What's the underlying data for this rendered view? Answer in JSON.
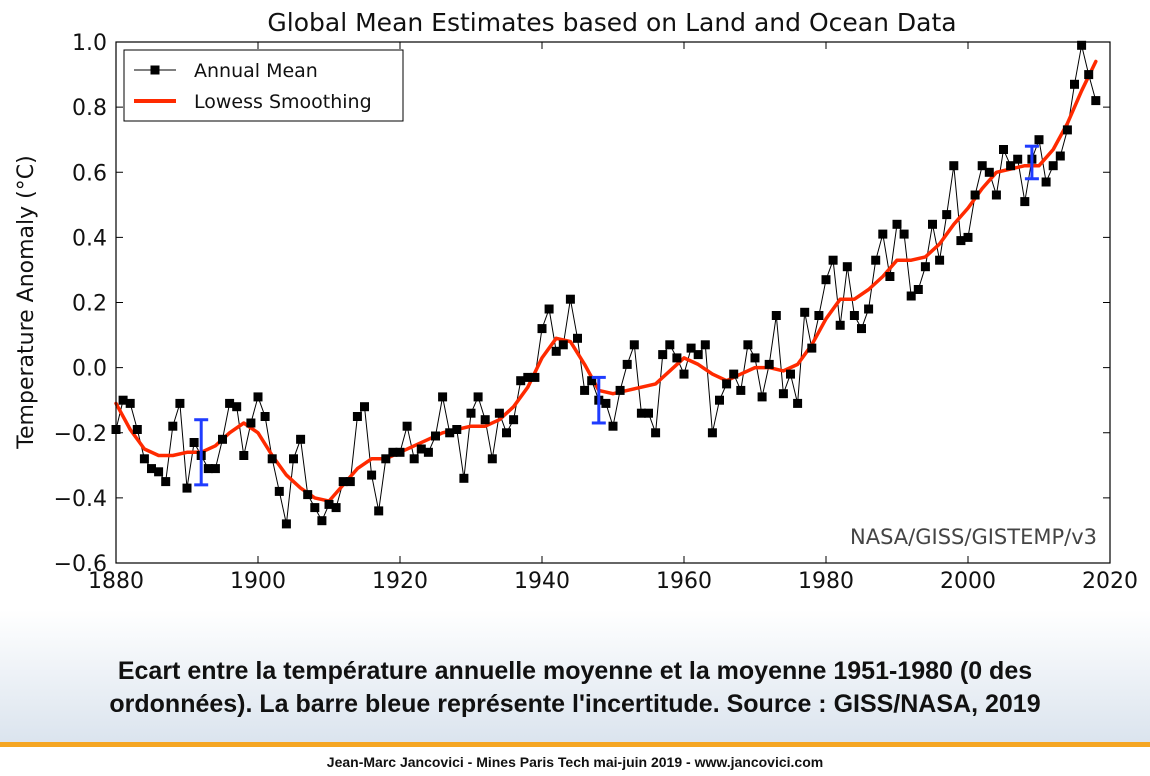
{
  "chart_data": {
    "type": "line",
    "title": "Global Mean Estimates based on Land and Ocean Data",
    "xlabel": "",
    "ylabel": "Temperature Anomaly (°C)",
    "xlim": [
      1880,
      2020
    ],
    "ylim": [
      -0.6,
      1.0
    ],
    "xticks": [
      1880,
      1900,
      1920,
      1940,
      1960,
      1980,
      2000,
      2020
    ],
    "yticks": [
      -0.6,
      -0.4,
      -0.2,
      0.0,
      0.2,
      0.4,
      0.6,
      0.8,
      1.0
    ],
    "ytick_labels": [
      "−0.6",
      "−0.4",
      "−0.2",
      "0.0",
      "0.2",
      "0.4",
      "0.6",
      "0.8",
      "1.0"
    ],
    "grid": false,
    "legend_position": "top-left",
    "annotation": "NASA/GISS/GISTEMP/v3",
    "colors": {
      "annual": "#000000",
      "smooth": "#ff2a00",
      "error": "#1f3cff"
    },
    "series": [
      {
        "name": "Annual Mean",
        "style": "black line with square markers",
        "x": [
          1880,
          1881,
          1882,
          1883,
          1884,
          1885,
          1886,
          1887,
          1888,
          1889,
          1890,
          1891,
          1892,
          1893,
          1894,
          1895,
          1896,
          1897,
          1898,
          1899,
          1900,
          1901,
          1902,
          1903,
          1904,
          1905,
          1906,
          1907,
          1908,
          1909,
          1910,
          1911,
          1912,
          1913,
          1914,
          1915,
          1916,
          1917,
          1918,
          1919,
          1920,
          1921,
          1922,
          1923,
          1924,
          1925,
          1926,
          1927,
          1928,
          1929,
          1930,
          1931,
          1932,
          1933,
          1934,
          1935,
          1936,
          1937,
          1938,
          1939,
          1940,
          1941,
          1942,
          1943,
          1944,
          1945,
          1946,
          1947,
          1948,
          1949,
          1950,
          1951,
          1952,
          1953,
          1954,
          1955,
          1956,
          1957,
          1958,
          1959,
          1960,
          1961,
          1962,
          1963,
          1964,
          1965,
          1966,
          1967,
          1968,
          1969,
          1970,
          1971,
          1972,
          1973,
          1974,
          1975,
          1976,
          1977,
          1978,
          1979,
          1980,
          1981,
          1982,
          1983,
          1984,
          1985,
          1986,
          1987,
          1988,
          1989,
          1990,
          1991,
          1992,
          1993,
          1994,
          1995,
          1996,
          1997,
          1998,
          1999,
          2000,
          2001,
          2002,
          2003,
          2004,
          2005,
          2006,
          2007,
          2008,
          2009,
          2010,
          2011,
          2012,
          2013,
          2014,
          2015,
          2016,
          2017,
          2018
        ],
        "y": [
          -0.19,
          -0.1,
          -0.11,
          -0.19,
          -0.28,
          -0.31,
          -0.32,
          -0.35,
          -0.18,
          -0.11,
          -0.37,
          -0.23,
          -0.27,
          -0.31,
          -0.31,
          -0.22,
          -0.11,
          -0.12,
          -0.27,
          -0.17,
          -0.09,
          -0.15,
          -0.28,
          -0.38,
          -0.48,
          -0.28,
          -0.22,
          -0.39,
          -0.43,
          -0.47,
          -0.42,
          -0.43,
          -0.35,
          -0.35,
          -0.15,
          -0.12,
          -0.33,
          -0.44,
          -0.28,
          -0.26,
          -0.26,
          -0.18,
          -0.28,
          -0.25,
          -0.26,
          -0.21,
          -0.09,
          -0.2,
          -0.19,
          -0.34,
          -0.14,
          -0.09,
          -0.16,
          -0.28,
          -0.14,
          -0.2,
          -0.16,
          -0.04,
          -0.03,
          -0.03,
          0.12,
          0.18,
          0.05,
          0.07,
          0.21,
          0.09,
          -0.07,
          -0.04,
          -0.1,
          -0.11,
          -0.18,
          -0.07,
          0.01,
          0.07,
          -0.14,
          -0.14,
          -0.2,
          0.04,
          0.07,
          0.03,
          -0.02,
          0.06,
          0.04,
          0.07,
          -0.2,
          -0.1,
          -0.05,
          -0.02,
          -0.07,
          0.07,
          0.03,
          -0.09,
          0.01,
          0.16,
          -0.08,
          -0.02,
          -0.11,
          0.17,
          0.06,
          0.16,
          0.27,
          0.33,
          0.13,
          0.31,
          0.16,
          0.12,
          0.18,
          0.33,
          0.41,
          0.28,
          0.44,
          0.41,
          0.22,
          0.24,
          0.31,
          0.44,
          0.33,
          0.47,
          0.62,
          0.39,
          0.4,
          0.53,
          0.62,
          0.6,
          0.53,
          0.67,
          0.62,
          0.64,
          0.51,
          0.64,
          0.7,
          0.57,
          0.62,
          0.65,
          0.73,
          0.87,
          0.99,
          0.9,
          0.82
        ]
      },
      {
        "name": "Lowess Smoothing",
        "style": "thick red line",
        "x": [
          1880,
          1882,
          1884,
          1886,
          1888,
          1890,
          1892,
          1894,
          1896,
          1898,
          1900,
          1902,
          1904,
          1906,
          1908,
          1910,
          1912,
          1914,
          1916,
          1918,
          1920,
          1922,
          1924,
          1926,
          1928,
          1930,
          1932,
          1934,
          1936,
          1938,
          1940,
          1942,
          1944,
          1946,
          1948,
          1950,
          1952,
          1954,
          1956,
          1958,
          1960,
          1962,
          1964,
          1966,
          1968,
          1970,
          1972,
          1974,
          1976,
          1978,
          1980,
          1982,
          1984,
          1986,
          1988,
          1990,
          1992,
          1994,
          1996,
          1998,
          2000,
          2002,
          2004,
          2006,
          2008,
          2010,
          2012,
          2014,
          2016,
          2018
        ],
        "y": [
          -0.11,
          -0.19,
          -0.25,
          -0.27,
          -0.27,
          -0.26,
          -0.26,
          -0.24,
          -0.2,
          -0.17,
          -0.2,
          -0.27,
          -0.33,
          -0.37,
          -0.4,
          -0.41,
          -0.36,
          -0.31,
          -0.28,
          -0.28,
          -0.26,
          -0.24,
          -0.22,
          -0.2,
          -0.19,
          -0.18,
          -0.18,
          -0.16,
          -0.12,
          -0.06,
          0.03,
          0.09,
          0.08,
          0.01,
          -0.07,
          -0.08,
          -0.07,
          -0.06,
          -0.05,
          -0.01,
          0.03,
          0.01,
          -0.02,
          -0.04,
          -0.02,
          0.0,
          0.0,
          -0.01,
          0.01,
          0.07,
          0.15,
          0.21,
          0.21,
          0.24,
          0.28,
          0.33,
          0.33,
          0.34,
          0.38,
          0.44,
          0.49,
          0.55,
          0.6,
          0.61,
          0.62,
          0.62,
          0.67,
          0.75,
          0.85,
          0.94
        ]
      }
    ],
    "error_bars": [
      {
        "x": 1892,
        "low": -0.36,
        "high": -0.16
      },
      {
        "x": 1948,
        "low": -0.17,
        "high": -0.03
      },
      {
        "x": 2009,
        "low": 0.58,
        "high": 0.68
      }
    ]
  },
  "caption": {
    "line1": "Ecart entre la température annuelle moyenne et la moyenne 1951-1980 (0 des",
    "line2": "ordonnées). La barre bleue représente l'incertitude. Source : GISS/NASA, 2019"
  },
  "footer": "Jean-Marc Jancovici - Mines Paris Tech mai-juin 2019 - www.jancovici.com"
}
